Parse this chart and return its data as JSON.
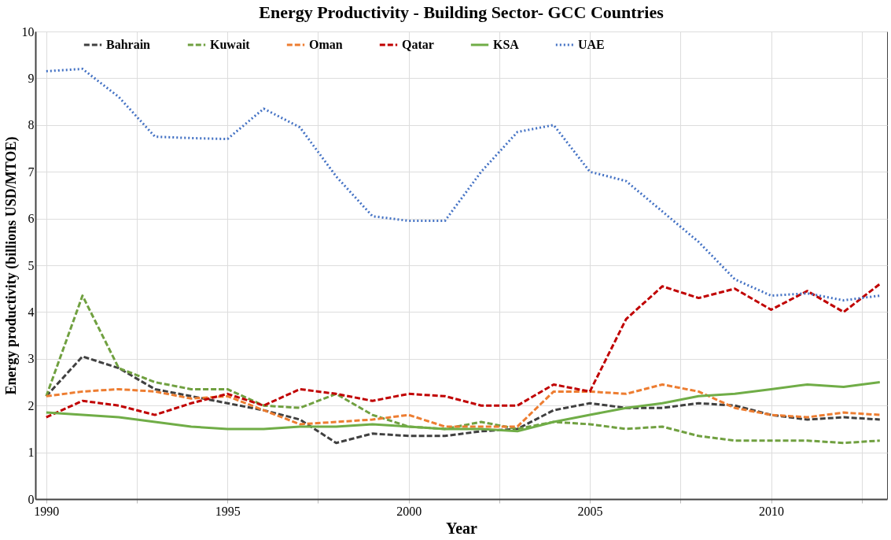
{
  "chart_data": {
    "type": "line",
    "title": "Energy Productivity - Building Sector- GCC Countries",
    "xlabel": "Year",
    "ylabel": "Energy productivity (billions USD/MTOE)",
    "x": [
      1990,
      1991,
      1992,
      1993,
      1994,
      1995,
      1996,
      1997,
      1998,
      1999,
      2000,
      2001,
      2002,
      2003,
      2004,
      2005,
      2006,
      2007,
      2008,
      2009,
      2010,
      2011,
      2012,
      2013
    ],
    "series": [
      {
        "name": "Bahrain",
        "color": "#404040",
        "line_style": "dashed",
        "values": [
          2.2,
          3.05,
          2.8,
          2.35,
          2.2,
          2.05,
          1.9,
          1.7,
          1.2,
          1.4,
          1.35,
          1.35,
          1.45,
          1.5,
          1.9,
          2.05,
          1.95,
          1.95,
          2.05,
          2.0,
          1.8,
          1.7,
          1.75,
          1.7
        ]
      },
      {
        "name": "Kuwait",
        "color": "#70a040",
        "line_style": "dashed",
        "values": [
          2.2,
          4.35,
          2.8,
          2.5,
          2.35,
          2.35,
          2.0,
          1.95,
          2.25,
          1.8,
          1.55,
          1.5,
          1.65,
          1.5,
          1.65,
          1.6,
          1.5,
          1.55,
          1.35,
          1.25,
          1.25,
          1.25,
          1.2,
          1.25
        ]
      },
      {
        "name": "Oman",
        "color": "#ed7d31",
        "line_style": "dashed",
        "values": [
          2.2,
          2.3,
          2.35,
          2.3,
          2.15,
          2.2,
          1.9,
          1.6,
          1.65,
          1.7,
          1.8,
          1.55,
          1.55,
          1.55,
          2.3,
          2.3,
          2.25,
          2.45,
          2.3,
          1.95,
          1.8,
          1.75,
          1.85,
          1.8
        ]
      },
      {
        "name": "Qatar",
        "color": "#c00000",
        "line_style": "dashed",
        "values": [
          1.75,
          2.1,
          2.0,
          1.8,
          2.05,
          2.25,
          2.0,
          2.35,
          2.25,
          2.1,
          2.25,
          2.2,
          2.0,
          2.0,
          2.45,
          2.3,
          3.85,
          4.55,
          4.3,
          4.5,
          4.05,
          4.45,
          4.0,
          4.6
        ]
      },
      {
        "name": "KSA",
        "color": "#70ad47",
        "line_style": "solid",
        "values": [
          1.85,
          1.8,
          1.75,
          1.65,
          1.55,
          1.5,
          1.5,
          1.55,
          1.55,
          1.6,
          1.55,
          1.5,
          1.5,
          1.45,
          1.65,
          1.8,
          1.95,
          2.05,
          2.2,
          2.25,
          2.35,
          2.45,
          2.4,
          2.5
        ]
      },
      {
        "name": "UAE",
        "color": "#4472c4",
        "line_style": "dotted",
        "values": [
          9.15,
          9.2,
          8.6,
          7.75,
          7.72,
          7.7,
          8.35,
          7.95,
          6.9,
          6.05,
          5.95,
          5.95,
          7.0,
          7.85,
          8.0,
          7.0,
          6.8,
          6.15,
          5.5,
          4.7,
          4.35,
          4.4,
          4.25,
          4.35
        ]
      }
    ],
    "xlim": [
      1989.7,
      2013.2
    ],
    "xticks": [
      1990,
      {
        "value": 1992.5,
        "label": null
      },
      1995,
      {
        "value": 1997.5,
        "label": null
      },
      2000,
      {
        "value": 2002.5,
        "label": null
      },
      2005,
      {
        "value": 2007.5,
        "label": null
      },
      2010,
      {
        "value": 2012.5,
        "label": null
      }
    ],
    "ylim": [
      0,
      10
    ],
    "yticks": [
      0,
      1,
      2,
      3,
      4,
      5,
      6,
      7,
      8,
      9,
      10
    ],
    "grid": true,
    "legend": "top",
    "marker": "none"
  }
}
